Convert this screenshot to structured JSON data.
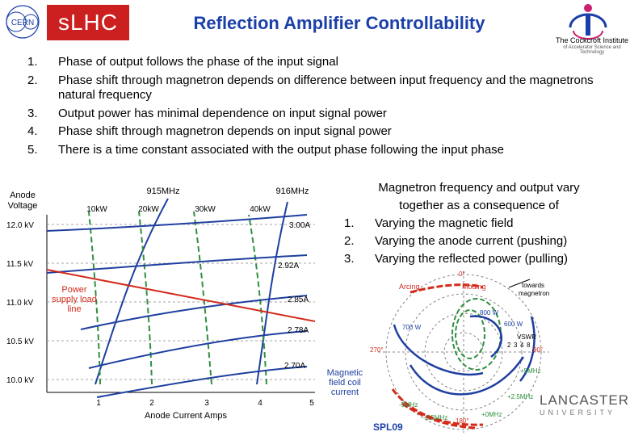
{
  "header": {
    "cern_logo_text": "CERN",
    "badge": "sLHC",
    "title": "Reflection Amplifier Controllability",
    "cockcroft_name": "The Cockcroft Institute",
    "cockcroft_sub": "of Accelerator Science and Technology"
  },
  "points": [
    {
      "num": "1.",
      "text": "Phase of output follows the phase of the input signal"
    },
    {
      "num": "2.",
      "text": "Phase shift through magnetron depends on difference between input frequency and the magnetrons natural frequency"
    },
    {
      "num": "3.",
      "text": "Output power has minimal dependence on input signal power"
    },
    {
      "num": "4.",
      "text": "Phase shift through magnetron depends on input signal power"
    },
    {
      "num": "5.",
      "text": "There is a time constant associated with the output phase following the input phase"
    }
  ],
  "left_chart": {
    "ylabel_line1": "Anode",
    "ylabel_line2": "Voltage",
    "y_ticks": [
      "12.0 kV",
      "11.5 kV",
      "11.0 kV",
      "10.5 kV",
      "10.0 kV"
    ],
    "x_ticks": [
      "1",
      "2",
      "3",
      "4",
      "5"
    ],
    "xlabel": "Anode Current Amps",
    "freq_labels": [
      "915MHz",
      "916MHz"
    ],
    "power_labels": [
      "10kW",
      "20kW",
      "30kW",
      "40kW"
    ],
    "current_labels": [
      "3.00A",
      "2.92A",
      "2.85A",
      "2.78A",
      "2.70A"
    ],
    "supply_line": [
      "Power",
      "supply load",
      "line"
    ],
    "field_label": [
      "Magnetic",
      "field coil",
      "current"
    ],
    "colors": {
      "blue": "#1f3fa0",
      "red": "#d42a1a",
      "green": "#2f8f3f",
      "black": "#000000"
    }
  },
  "right_text": {
    "heading_line1": "Magnetron frequency and output vary",
    "heading_line2": "together as a consequence of",
    "items": [
      {
        "num": "1.",
        "text": "Varying the magnetic field"
      },
      {
        "num": "2.",
        "text": "Varying the anode current (pushing)"
      },
      {
        "num": "3.",
        "text": "Varying the reflected power (pulling)"
      }
    ]
  },
  "polar": {
    "angle_labels": [
      "0°",
      "90°",
      "180°",
      "270°"
    ],
    "annotations": [
      "Arcing",
      "Moding",
      "towards",
      "magnetron",
      "800 W",
      "700 W",
      "600 W",
      "VSWR",
      "2",
      "3",
      "4",
      "8"
    ],
    "freq_labels": [
      "+5MHz",
      "+2.5MHz",
      "+0MHz",
      "-2.5MHz",
      "-5MHz"
    ]
  },
  "footer": {
    "lancaster_line1": "LANCASTER",
    "lancaster_line2": "UNIVERSITY",
    "code": "SPL09"
  }
}
